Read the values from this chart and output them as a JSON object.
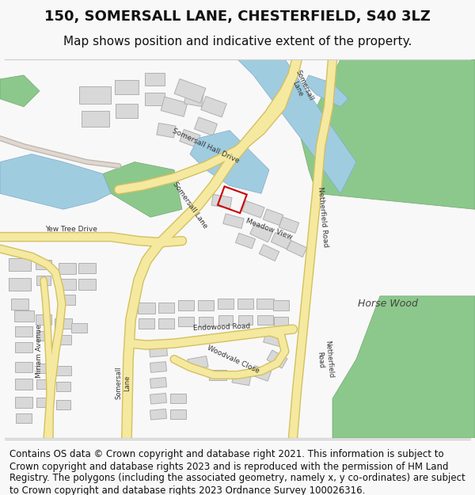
{
  "title_line1": "150, SOMERSALL LANE, CHESTERFIELD, S40 3LZ",
  "title_line2": "Map shows position and indicative extent of the property.",
  "footer_text": "Contains OS data © Crown copyright and database right 2021. This information is subject to Crown copyright and database rights 2023 and is reproduced with the permission of HM Land Registry. The polygons (including the associated geometry, namely x, y co-ordinates) are subject to Crown copyright and database rights 2023 Ordnance Survey 100026316.",
  "bg_color": "#f8f8f8",
  "map_bg": "#ffffff",
  "road_color": "#f5e9a0",
  "road_border": "#d4c060",
  "building_color": "#d8d8d8",
  "building_border": "#b0b0b0",
  "green_color": "#8cc88c",
  "green_edge": "#70a870",
  "water_color": "#a0cce0",
  "water_edge": "#80aac8",
  "highlight_color": "#cc0000",
  "label_color": "#333333",
  "title_fontsize": 13,
  "subtitle_fontsize": 11,
  "footer_fontsize": 8.5
}
